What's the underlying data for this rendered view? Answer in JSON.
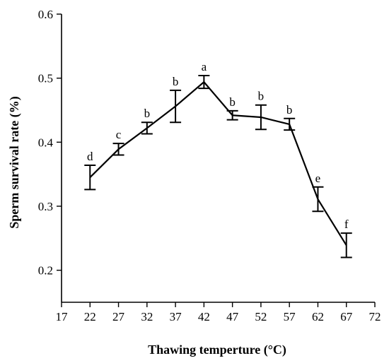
{
  "chart_data": {
    "type": "line",
    "title": "",
    "xlabel": "Thawing temperture (°C)",
    "ylabel": "Sperm survival rate (%)",
    "xlim": [
      17,
      72
    ],
    "ylim": [
      0.15,
      0.6
    ],
    "x_ticks": [
      17,
      22,
      27,
      32,
      37,
      42,
      47,
      52,
      57,
      62,
      67,
      72
    ],
    "y_ticks": [
      0.2,
      0.3,
      0.4,
      0.5,
      0.6
    ],
    "y_tick_labels": [
      "0.2",
      "0.3",
      "0.4",
      "0.5",
      "0.6"
    ],
    "grid": false,
    "series": [
      {
        "x": [
          22,
          27,
          32,
          37,
          42,
          47,
          52,
          57,
          62,
          67
        ],
        "y": [
          0.345,
          0.389,
          0.422,
          0.456,
          0.494,
          0.442,
          0.439,
          0.428,
          0.311,
          0.239
        ],
        "err": [
          0.019,
          0.009,
          0.009,
          0.025,
          0.01,
          0.007,
          0.019,
          0.009,
          0.019,
          0.019
        ],
        "labels": [
          "d",
          "c",
          "b",
          "b",
          "a",
          "b",
          "b",
          "b",
          "e",
          "f"
        ],
        "color": "#000000"
      }
    ]
  }
}
